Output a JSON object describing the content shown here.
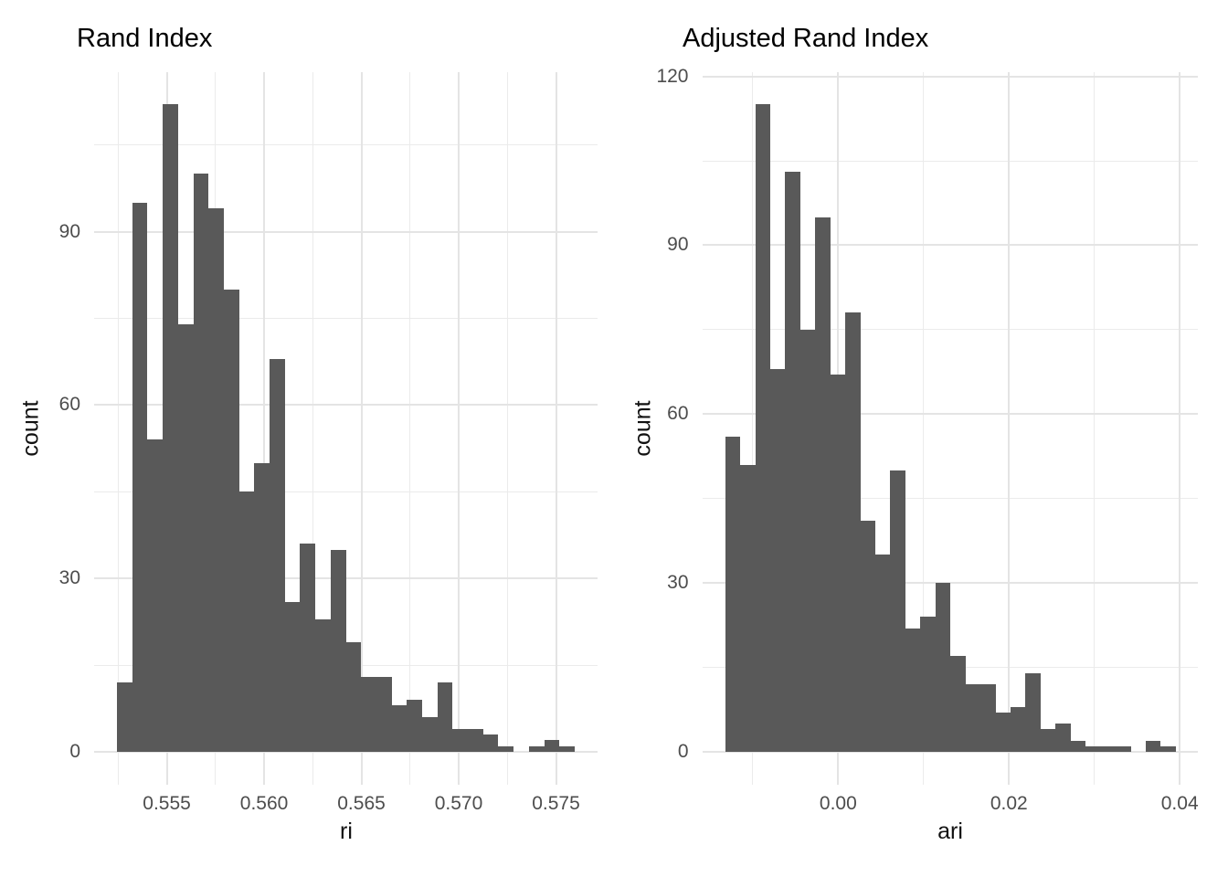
{
  "figure": {
    "background_color": "#ffffff",
    "bar_color": "#595959",
    "grid_major_color": "#e4e4e4",
    "grid_minor_color": "#ebebeb",
    "tick_label_color": "#4d4d4d",
    "title_color": "#000000"
  },
  "chart_data": [
    {
      "type": "bar",
      "subtype": "histogram",
      "title": "Rand Index",
      "xlabel": "ri",
      "ylabel": "count",
      "bin_start": 0.55244,
      "bin_width": 0.000784,
      "counts": [
        12,
        95,
        54,
        112,
        74,
        100,
        94,
        80,
        45,
        50,
        68,
        26,
        36,
        23,
        35,
        19,
        13,
        13,
        8,
        9,
        6,
        12,
        4,
        4,
        3,
        1,
        0,
        1,
        2,
        1
      ],
      "total_n": 1000,
      "xlim": [
        0.551264,
        0.577136
      ],
      "ylim": [
        -5.6,
        117.6
      ],
      "x_ticks": [
        0.555,
        0.56,
        0.565,
        0.57,
        0.575
      ],
      "x_tick_labels": [
        "0.555",
        "0.560",
        "0.565",
        "0.570",
        "0.575"
      ],
      "x_minor_ticks": [
        0.5525,
        0.5575,
        0.5625,
        0.5675,
        0.5725
      ],
      "y_ticks": [
        0,
        30,
        60,
        90
      ],
      "y_tick_labels": [
        "0",
        "30",
        "60",
        "90"
      ],
      "y_minor_ticks": [
        15,
        45,
        75,
        105
      ],
      "grid": true,
      "legend": null
    },
    {
      "type": "bar",
      "subtype": "histogram",
      "title": "Adjusted Rand Index",
      "xlabel": "ari",
      "ylabel": "count",
      "bin_start": -0.01329,
      "bin_width": 0.001759,
      "counts": [
        56,
        51,
        115,
        68,
        103,
        75,
        95,
        67,
        78,
        41,
        35,
        50,
        22,
        24,
        30,
        17,
        12,
        12,
        7,
        8,
        14,
        4,
        5,
        2,
        1,
        1,
        1,
        0,
        2,
        1
      ],
      "total_n": 997,
      "xlim": [
        -0.015929,
        0.042119
      ],
      "ylim": [
        -5.75,
        120.75
      ],
      "x_ticks": [
        0.0,
        0.02,
        0.04
      ],
      "x_tick_labels": [
        "0.00",
        "0.02",
        "0.04"
      ],
      "x_minor_ticks": [
        -0.01,
        0.01,
        0.03
      ],
      "y_ticks": [
        0,
        30,
        60,
        90,
        120
      ],
      "y_tick_labels": [
        "0",
        "30",
        "60",
        "90",
        "120"
      ],
      "y_minor_ticks": [
        15,
        45,
        75,
        105
      ],
      "grid": true,
      "legend": null
    }
  ]
}
